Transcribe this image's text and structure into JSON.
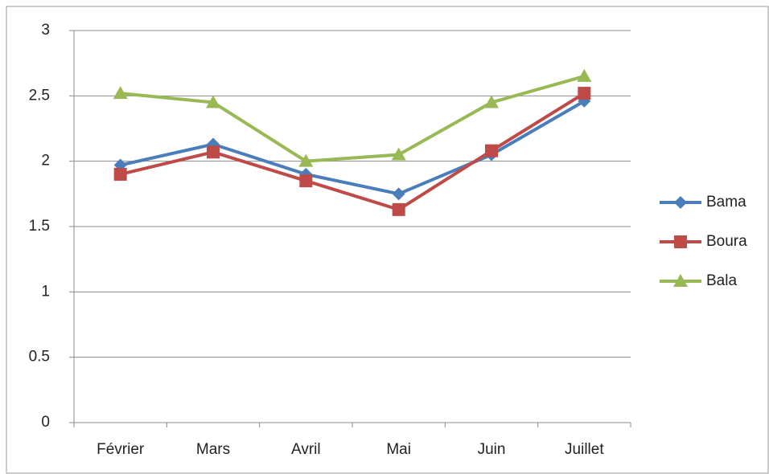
{
  "chart_data": {
    "type": "line",
    "categories": [
      "Février",
      "Mars",
      "Avril",
      "Mai",
      "Juin",
      "Juillet"
    ],
    "series": [
      {
        "name": "Bama",
        "color": "#4a7ebb",
        "marker": "diamond",
        "values": [
          1.97,
          2.13,
          1.9,
          1.75,
          2.05,
          2.46
        ]
      },
      {
        "name": "Boura",
        "color": "#be4b48",
        "marker": "square",
        "values": [
          1.9,
          2.07,
          1.85,
          1.63,
          2.08,
          2.52
        ]
      },
      {
        "name": "Bala",
        "color": "#98b954",
        "marker": "triangle",
        "values": [
          2.52,
          2.45,
          2.0,
          2.05,
          2.45,
          2.65
        ]
      }
    ],
    "ylim": [
      0,
      3
    ],
    "yticks": [
      0,
      0.5,
      1,
      1.5,
      2,
      2.5,
      3
    ],
    "grid": true,
    "legend": "right"
  }
}
